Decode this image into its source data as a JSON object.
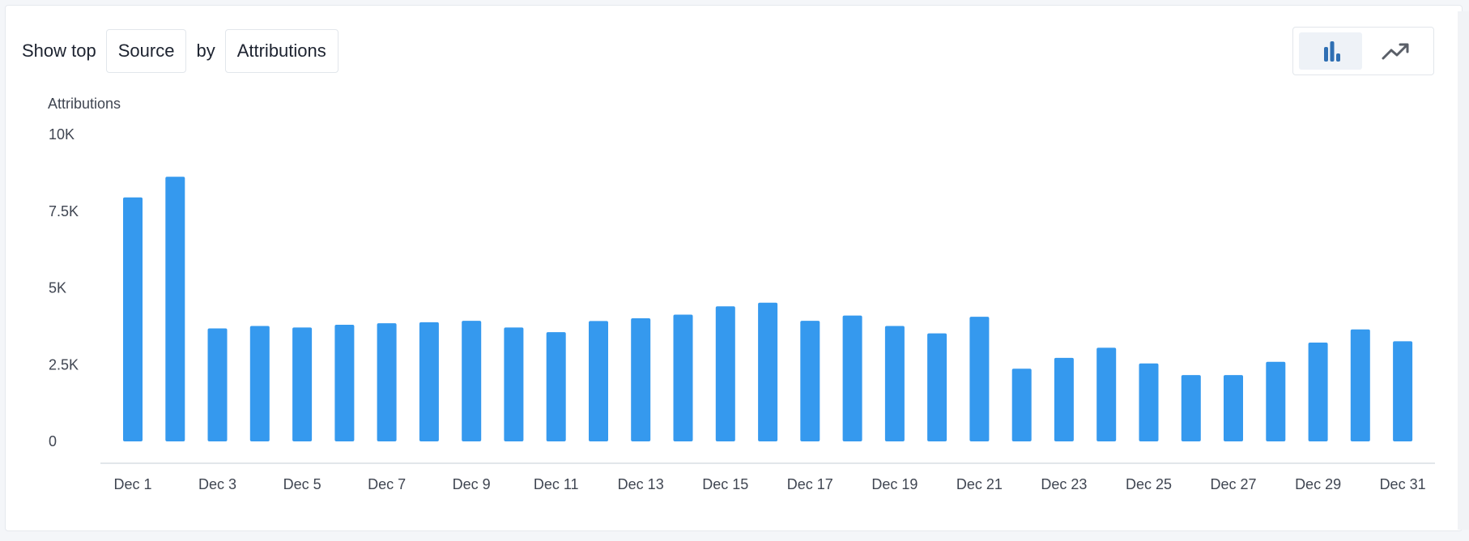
{
  "controls": {
    "show_top_label": "Show top",
    "group_by_value": "Source",
    "by_label": "by",
    "metric_value": "Attributions"
  },
  "view_toggle": {
    "active": "bar",
    "bar_icon": "bar-chart-icon",
    "line_icon": "trend-line-icon"
  },
  "colors": {
    "bar": "#3599ee",
    "icon_active": "#2f6fb3",
    "icon_inactive": "#5a5f68",
    "axis": "#d9dde3"
  },
  "chart_data": {
    "type": "bar",
    "ylabel": "Attributions",
    "ylim": [
      0,
      10000
    ],
    "yticks": [
      0,
      2500,
      5000,
      7500,
      10000
    ],
    "ytick_labels": [
      "0",
      "2.5K",
      "5K",
      "7.5K",
      "10K"
    ],
    "xtick_labels": [
      "Dec 1",
      "Dec 3",
      "Dec 5",
      "Dec 7",
      "Dec 9",
      "Dec 11",
      "Dec 13",
      "Dec 15",
      "Dec 17",
      "Dec 19",
      "Dec 21",
      "Dec 23",
      "Dec 25",
      "Dec 27",
      "Dec 29",
      "Dec 31"
    ],
    "categories": [
      "Dec 1",
      "Dec 2",
      "Dec 3",
      "Dec 4",
      "Dec 5",
      "Dec 6",
      "Dec 7",
      "Dec 8",
      "Dec 9",
      "Dec 10",
      "Dec 11",
      "Dec 12",
      "Dec 13",
      "Dec 14",
      "Dec 15",
      "Dec 16",
      "Dec 17",
      "Dec 18",
      "Dec 19",
      "Dec 20",
      "Dec 21",
      "Dec 22",
      "Dec 23",
      "Dec 24",
      "Dec 25",
      "Dec 26",
      "Dec 27",
      "Dec 28",
      "Dec 29",
      "Dec 30",
      "Dec 31"
    ],
    "values": [
      7950,
      8620,
      3680,
      3760,
      3710,
      3800,
      3850,
      3880,
      3930,
      3710,
      3560,
      3920,
      4010,
      4130,
      4400,
      4520,
      3930,
      4100,
      3760,
      3520,
      4060,
      2370,
      2720,
      3050,
      2540,
      2160,
      2160,
      2590,
      3220,
      3650,
      3260
    ],
    "grid": false,
    "legend": "none"
  }
}
